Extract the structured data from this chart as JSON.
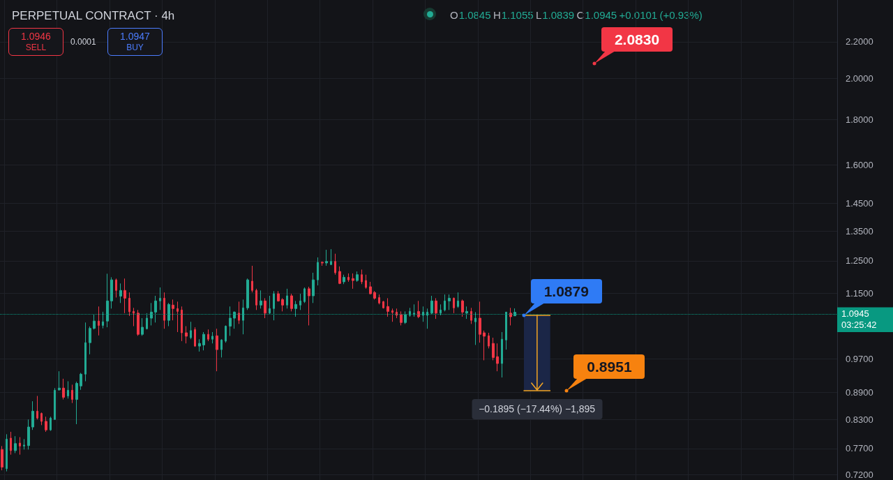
{
  "chart_data": {
    "type": "candlestick",
    "title": "PERPETUAL CONTRACT · 4h",
    "subtitle": "O1.0845 H1.1055 L1.0839 C1.0945 +0.0101 (+0.93%)",
    "categories": [
      null,
      null,
      null,
      null,
      null,
      null,
      null,
      null,
      null,
      null,
      null,
      null,
      null,
      null,
      null,
      null,
      null,
      null,
      null,
      null,
      null,
      null,
      null,
      null,
      null,
      null,
      null,
      null,
      null,
      null,
      null,
      null,
      null,
      null,
      null,
      null,
      null,
      null,
      null,
      null,
      null,
      null,
      null,
      null,
      null,
      null,
      null,
      null,
      null,
      null,
      null,
      null,
      null,
      null,
      null,
      null,
      null,
      null,
      null,
      null,
      null,
      null,
      null,
      null,
      null,
      null,
      null,
      null,
      null,
      null,
      null,
      null,
      null,
      null,
      null,
      null,
      null,
      null,
      null,
      null,
      null,
      null,
      null,
      null,
      null,
      null,
      null,
      null,
      null,
      null,
      null,
      null,
      null,
      null,
      null,
      null,
      null,
      null,
      null,
      null,
      null,
      null,
      null,
      null,
      null,
      null,
      null,
      null,
      null,
      null,
      null,
      null,
      null,
      null,
      null,
      null,
      null,
      null,
      null,
      null,
      null,
      null,
      null,
      null,
      null,
      null,
      null,
      null,
      null,
      null,
      null,
      null,
      null,
      null,
      null,
      null,
      null,
      null,
      null,
      null,
      null,
      null,
      null,
      null,
      null,
      null,
      null,
      null,
      null,
      null,
      null,
      null,
      null,
      null,
      null,
      null,
      null,
      null,
      null,
      null,
      null,
      null,
      null,
      null,
      null,
      null,
      null,
      null,
      null,
      null,
      null,
      null,
      null,
      null,
      null,
      null,
      null,
      null,
      null,
      null,
      null,
      null,
      null,
      null,
      null,
      null,
      null,
      null,
      null,
      null,
      null
    ],
    "ohlc": [
      [
        0.768,
        0.775,
        0.728,
        0.734
      ],
      [
        0.731,
        0.799,
        0.726,
        0.789
      ],
      [
        0.791,
        0.804,
        0.758,
        0.766
      ],
      [
        0.766,
        0.795,
        0.761,
        0.78
      ],
      [
        0.781,
        0.793,
        0.758,
        0.775
      ],
      [
        0.775,
        0.789,
        0.768,
        0.777
      ],
      [
        0.776,
        0.83,
        0.768,
        0.814
      ],
      [
        0.814,
        0.87,
        0.808,
        0.848
      ],
      [
        0.848,
        0.882,
        0.83,
        0.833
      ],
      [
        0.843,
        0.845,
        0.818,
        0.826
      ],
      [
        0.826,
        0.836,
        0.804,
        0.808
      ],
      [
        0.808,
        0.836,
        0.806,
        0.833
      ],
      [
        0.83,
        0.9,
        0.83,
        0.895
      ],
      [
        0.896,
        0.94,
        0.894,
        0.9
      ],
      [
        0.9,
        0.922,
        0.874,
        0.879
      ],
      [
        0.882,
        0.916,
        0.876,
        0.895
      ],
      [
        0.895,
        0.908,
        0.866,
        0.874
      ],
      [
        0.874,
        0.915,
        0.82,
        0.911
      ],
      [
        0.905,
        0.936,
        0.896,
        0.933
      ],
      [
        0.933,
        1.066,
        0.916,
        1.012
      ],
      [
        1.012,
        1.055,
        0.982,
        1.05
      ],
      [
        1.05,
        1.088,
        1.047,
        1.07
      ],
      [
        1.07,
        1.111,
        1.031,
        1.058
      ],
      [
        1.058,
        1.096,
        1.05,
        1.068
      ],
      [
        1.07,
        1.209,
        1.053,
        1.127
      ],
      [
        1.127,
        1.198,
        1.105,
        1.19
      ],
      [
        1.19,
        1.194,
        1.137,
        1.158
      ],
      [
        1.141,
        1.179,
        1.121,
        1.158
      ],
      [
        1.158,
        1.194,
        1.092,
        1.135
      ],
      [
        1.135,
        1.152,
        1.084,
        1.096
      ],
      [
        1.097,
        1.107,
        1.056,
        1.092
      ],
      [
        1.092,
        1.101,
        1.03,
        1.034
      ],
      [
        1.034,
        1.078,
        1.03,
        1.053
      ],
      [
        1.049,
        1.092,
        1.047,
        1.078
      ],
      [
        1.078,
        1.121,
        1.058,
        1.095
      ],
      [
        1.095,
        1.142,
        1.066,
        1.127
      ],
      [
        1.127,
        1.167,
        1.101,
        1.135
      ],
      [
        1.135,
        1.152,
        1.049,
        1.072
      ],
      [
        1.072,
        1.121,
        1.056,
        1.117
      ],
      [
        1.115,
        1.131,
        1.072,
        1.105
      ],
      [
        1.105,
        1.125,
        1.04,
        1.097
      ],
      [
        1.101,
        1.111,
        1.016,
        1.038
      ],
      [
        1.038,
        1.056,
        1.01,
        1.029
      ],
      [
        1.025,
        1.068,
        1.021,
        1.044
      ],
      [
        1.047,
        1.053,
        1.001,
        1.003
      ],
      [
        1.003,
        1.021,
        0.989,
        1.01
      ],
      [
        1.006,
        1.04,
        0.992,
        1.034
      ],
      [
        1.034,
        1.047,
        1.016,
        1.021
      ],
      [
        1.021,
        1.04,
        1.01,
        1.029
      ],
      [
        1.03,
        1.049,
        0.94,
        0.994
      ],
      [
        0.994,
        1.021,
        0.974,
        1.019
      ],
      [
        1.016,
        1.058,
        1.012,
        1.056
      ],
      [
        1.056,
        1.111,
        1.03,
        1.078
      ],
      [
        1.078,
        1.097,
        1.049,
        1.095
      ],
      [
        1.092,
        1.125,
        1.062,
        1.072
      ],
      [
        1.072,
        1.131,
        1.034,
        1.107
      ],
      [
        1.107,
        1.194,
        1.101,
        1.19
      ],
      [
        1.186,
        1.234,
        1.152,
        1.158
      ],
      [
        1.158,
        1.163,
        1.101,
        1.115
      ],
      [
        1.115,
        1.158,
        1.105,
        1.127
      ],
      [
        1.127,
        1.135,
        1.078,
        1.092
      ],
      [
        1.092,
        1.142,
        1.088,
        1.105
      ],
      [
        1.105,
        1.156,
        1.072,
        1.148
      ],
      [
        1.148,
        1.156,
        1.125,
        1.127
      ],
      [
        1.131,
        1.135,
        1.097,
        1.115
      ],
      [
        1.115,
        1.163,
        1.105,
        1.142
      ],
      [
        1.142,
        1.148,
        1.097,
        1.105
      ],
      [
        1.105,
        1.127,
        1.082,
        1.117
      ],
      [
        1.115,
        1.148,
        1.101,
        1.127
      ],
      [
        1.125,
        1.167,
        1.121,
        1.163
      ],
      [
        1.163,
        1.169,
        1.058,
        1.142
      ],
      [
        1.142,
        1.212,
        1.121,
        1.19
      ],
      [
        1.19,
        1.261,
        1.173,
        1.245
      ],
      [
        1.245,
        1.248,
        1.234,
        1.243
      ],
      [
        1.243,
        1.286,
        1.234,
        1.248
      ],
      [
        1.238,
        1.288,
        1.236,
        1.248
      ],
      [
        1.248,
        1.273,
        1.206,
        1.212
      ],
      [
        1.216,
        1.232,
        1.177,
        1.179
      ],
      [
        1.184,
        1.206,
        1.177,
        1.198
      ],
      [
        1.198,
        1.21,
        1.184,
        1.19
      ],
      [
        1.194,
        1.21,
        1.163,
        1.188
      ],
      [
        1.188,
        1.216,
        1.184,
        1.206
      ],
      [
        1.206,
        1.222,
        1.177,
        1.184
      ],
      [
        1.188,
        1.206,
        1.163,
        1.167
      ],
      [
        1.169,
        1.184,
        1.146,
        1.148
      ],
      [
        1.152,
        1.156,
        1.131,
        1.135
      ],
      [
        1.137,
        1.146,
        1.117,
        1.121
      ],
      [
        1.125,
        1.127,
        1.105,
        1.107
      ],
      [
        1.111,
        1.135,
        1.082,
        1.097
      ],
      [
        1.099,
        1.105,
        1.068,
        1.094
      ],
      [
        1.095,
        1.105,
        1.078,
        1.086
      ],
      [
        1.088,
        1.097,
        1.058,
        1.066
      ],
      [
        1.066,
        1.097,
        1.062,
        1.088
      ],
      [
        1.086,
        1.107,
        1.082,
        1.097
      ],
      [
        1.088,
        1.117,
        1.082,
        1.092
      ],
      [
        1.097,
        1.127,
        1.078,
        1.082
      ],
      [
        1.086,
        1.111,
        1.068,
        1.095
      ],
      [
        1.086,
        1.105,
        1.049,
        1.095
      ],
      [
        1.092,
        1.142,
        1.088,
        1.127
      ],
      [
        1.127,
        1.135,
        1.076,
        1.092
      ],
      [
        1.092,
        1.117,
        1.086,
        1.101
      ],
      [
        1.101,
        1.146,
        1.097,
        1.127
      ],
      [
        1.127,
        1.146,
        1.101,
        1.135
      ],
      [
        1.135,
        1.137,
        1.092,
        1.107
      ],
      [
        1.111,
        1.152,
        1.107,
        1.127
      ],
      [
        1.127,
        1.131,
        1.082,
        1.095
      ],
      [
        1.092,
        1.111,
        1.076,
        1.097
      ],
      [
        1.097,
        1.107,
        1.062,
        1.072
      ],
      [
        1.068,
        1.095,
        1.006,
        1.078
      ],
      [
        1.078,
        1.125,
        1.012,
        1.034
      ],
      [
        1.038,
        1.044,
        0.967,
        1.029
      ],
      [
        1.03,
        1.038,
        0.997,
        1.003
      ],
      [
        1.01,
        1.025,
        0.967,
        0.974
      ],
      [
        0.976,
        1.01,
        0.94,
        0.959
      ],
      [
        0.959,
        1.04,
        0.925,
        1.021
      ],
      [
        1.019,
        1.095,
        0.994,
        1.095
      ],
      [
        1.092,
        1.107,
        1.058,
        1.082
      ],
      [
        1.0845,
        1.1055,
        1.0839,
        1.0945
      ],
      null,
      null,
      null,
      null,
      null,
      null,
      null,
      null,
      null,
      null,
      null,
      null,
      null,
      null,
      null,
      null,
      null,
      null,
      null,
      null,
      null,
      null,
      null,
      null,
      null,
      null,
      null,
      null,
      null,
      null,
      null,
      null,
      null,
      null,
      null,
      null,
      null,
      null,
      null,
      null,
      null,
      null,
      null,
      null,
      null,
      null,
      null,
      null,
      null,
      null,
      null,
      null,
      null,
      null,
      null,
      null,
      null,
      null,
      null,
      null,
      null,
      null,
      null,
      null,
      null,
      null,
      null,
      null,
      null,
      null,
      null,
      null,
      null
    ],
    "colors": [
      "#f23645",
      "#22ab94",
      "#f23645",
      "#22ab94",
      "#f23645",
      "#22ab94",
      "#22ab94",
      "#22ab94",
      "#f23645",
      "#f23645",
      "#f23645",
      "#22ab94",
      "#22ab94",
      "#22ab94",
      "#f23645",
      "#22ab94",
      "#f23645",
      "#22ab94",
      "#22ab94",
      "#22ab94",
      "#22ab94",
      "#22ab94",
      "#f23645",
      "#22ab94",
      "#22ab94",
      "#22ab94",
      "#f23645",
      "#22ab94",
      "#f23645",
      "#f23645",
      "#f23645",
      "#f23645",
      "#22ab94",
      "#22ab94",
      "#22ab94",
      "#22ab94",
      "#22ab94",
      "#f23645",
      "#22ab94",
      "#f23645",
      "#f23645",
      "#f23645",
      "#f23645",
      "#22ab94",
      "#f23645",
      "#22ab94",
      "#22ab94",
      "#f23645",
      "#22ab94",
      "#f23645",
      "#22ab94",
      "#22ab94",
      "#22ab94",
      "#22ab94",
      "#f23645",
      "#22ab94",
      "#22ab94",
      "#f23645",
      "#f23645",
      "#22ab94",
      "#f23645",
      "#22ab94",
      "#22ab94",
      "#f23645",
      "#f23645",
      "#22ab94",
      "#f23645",
      "#22ab94",
      "#22ab94",
      "#22ab94",
      "#f23645",
      "#22ab94",
      "#22ab94",
      "#f23645",
      "#22ab94",
      "#22ab94",
      "#f23645",
      "#f23645",
      "#22ab94",
      "#f23645",
      "#f23645",
      "#22ab94",
      "#f23645",
      "#f23645",
      "#f23645",
      "#f23645",
      "#f23645",
      "#f23645",
      "#f23645",
      "#f23645",
      "#f23645",
      "#f23645",
      "#22ab94",
      "#22ab94",
      "#22ab94",
      "#f23645",
      "#22ab94",
      "#22ab94",
      "#22ab94",
      "#f23645",
      "#22ab94",
      "#22ab94",
      "#22ab94",
      "#f23645",
      "#22ab94",
      "#f23645",
      "#22ab94",
      "#f23645",
      "#22ab94",
      "#f23645",
      "#f23645",
      "#f23645",
      "#f23645",
      "#f23645",
      "#22ab94",
      "#22ab94",
      "#f23645",
      "#22ab94",
      null,
      null,
      null,
      null,
      null,
      null,
      null,
      null,
      null,
      null,
      null,
      null,
      null,
      null,
      null,
      null,
      null,
      null,
      null,
      null,
      null,
      null,
      null,
      null,
      null,
      null,
      null,
      null,
      null,
      null,
      null,
      null,
      null,
      null,
      null,
      null,
      null,
      null,
      null,
      null,
      null,
      null,
      null,
      null,
      null,
      null,
      null,
      null,
      null,
      null,
      null,
      null,
      null,
      null,
      null,
      null,
      null,
      null,
      null,
      null,
      null,
      null,
      null,
      null,
      null,
      null,
      null,
      null,
      null,
      null,
      null,
      null,
      null
    ],
    "log": true,
    "ylim": [
      0.71,
      2.45
    ],
    "yticks": [
      {
        "value": 0.72,
        "label": "0.7200"
      },
      {
        "value": 0.77,
        "label": "0.7700"
      },
      {
        "value": 0.83,
        "label": "0.8300"
      },
      {
        "value": 0.89,
        "label": "0.8900"
      },
      {
        "value": 0.97,
        "label": "0.9700"
      },
      {
        "value": 1.15,
        "label": "1.1500"
      },
      {
        "value": 1.25,
        "label": "1.2500"
      },
      {
        "value": 1.35,
        "label": "1.3500"
      },
      {
        "value": 1.45,
        "label": "1.4500"
      },
      {
        "value": 1.6,
        "label": "1.6000"
      },
      {
        "value": 1.8,
        "label": "1.8000"
      },
      {
        "value": 2.0,
        "label": "2.0000"
      },
      {
        "value": 2.2,
        "label": "2.2000"
      }
    ],
    "grid": true,
    "tick_labels": "y",
    "ref_lines": [
      {
        "axis": "y",
        "value": 1.0945,
        "label": "1.0945",
        "color": "#089981",
        "line_style": "dotted"
      }
    ],
    "annotations": [
      "1.0946",
      "SELL",
      "0.0001",
      "1.0947",
      "BUY",
      "2.0830",
      "1.0879",
      "0.8951",
      "−0.1895 (−17.44%) −1,895",
      "03:25:42"
    ]
  }
}
